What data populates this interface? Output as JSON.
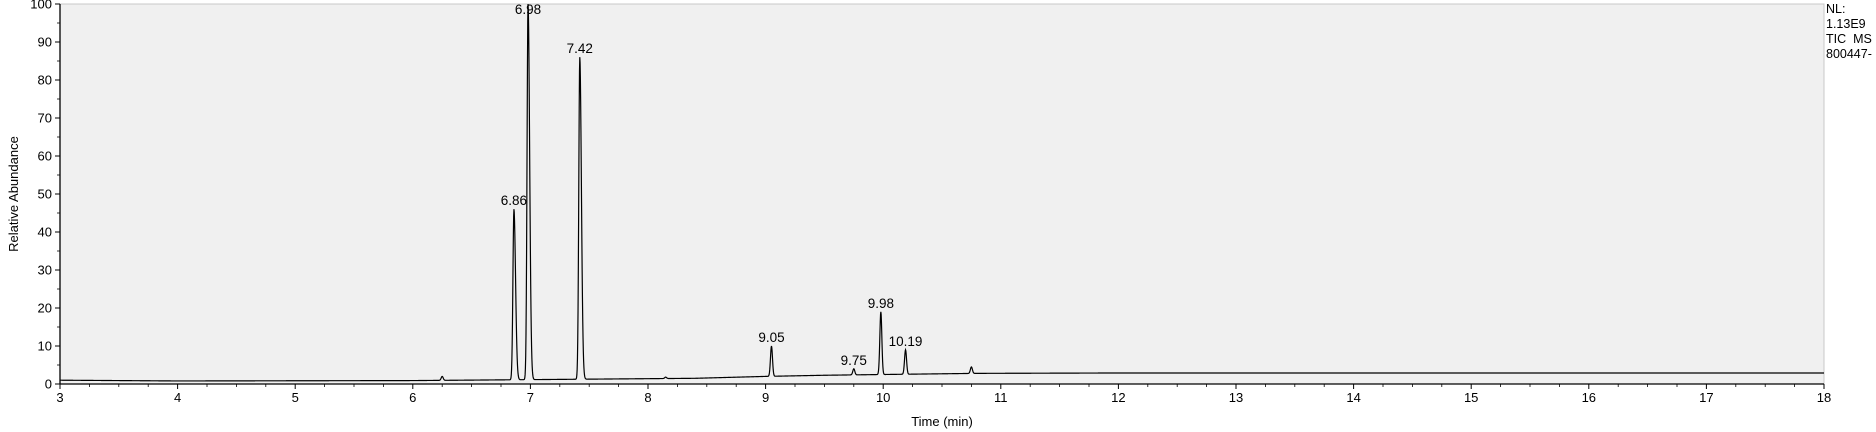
{
  "chart_data": {
    "type": "line",
    "xlabel": "Time (min)",
    "ylabel": "Relative Abundance",
    "xlim": [
      3,
      18
    ],
    "ylim": [
      0,
      100
    ],
    "x_ticks": [
      3,
      4,
      5,
      6,
      7,
      8,
      9,
      10,
      11,
      12,
      13,
      14,
      15,
      16,
      17,
      18
    ],
    "y_ticks": [
      0,
      10,
      20,
      30,
      40,
      50,
      60,
      70,
      80,
      90,
      100
    ],
    "grid": false,
    "legend": "none",
    "colors": {
      "trace": "#000000",
      "plot_background": "#f0f0f0",
      "axis": "#000000"
    },
    "info": [
      "NL:",
      "1.13E9",
      "TIC  MS",
      "800447-"
    ],
    "peaks": [
      {
        "label": "6.86",
        "x": 6.86,
        "y": 46
      },
      {
        "label": "6.98",
        "x": 6.98,
        "y": 100
      },
      {
        "label": "7.42",
        "x": 7.42,
        "y": 86
      },
      {
        "label": "9.05",
        "x": 9.05,
        "y": 10
      },
      {
        "label": "9.75",
        "x": 9.75,
        "y": 4
      },
      {
        "label": "9.98",
        "x": 9.98,
        "y": 19
      },
      {
        "label": "10.19",
        "x": 10.19,
        "y": 9
      }
    ],
    "minor_peaks": [
      {
        "x": 6.25,
        "y": 2
      },
      {
        "x": 8.15,
        "y": 1.8
      },
      {
        "x": 10.75,
        "y": 4.5
      }
    ],
    "baseline": [
      [
        3,
        1.0
      ],
      [
        4,
        0.8
      ],
      [
        6,
        0.9
      ],
      [
        7.6,
        1.3
      ],
      [
        8.4,
        1.5
      ],
      [
        9.0,
        2.0
      ],
      [
        9.5,
        2.3
      ],
      [
        10.0,
        2.5
      ],
      [
        10.8,
        2.8
      ],
      [
        12,
        2.9
      ],
      [
        18,
        2.9
      ]
    ]
  }
}
